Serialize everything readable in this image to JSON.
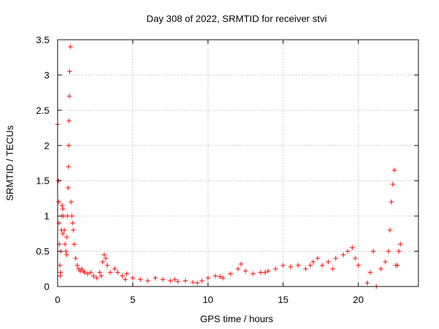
{
  "chart_data": {
    "type": "scatter",
    "title": "Day 308 of 2022, SRMTID for receiver stvi",
    "xlabel": "GPS time / hours",
    "ylabel": "SRMTID / TECUs",
    "xlim": [
      0,
      24
    ],
    "ylim": [
      0,
      3.5
    ],
    "x_ticks": [
      0,
      5,
      10,
      15,
      20
    ],
    "x_tick_labels": [
      "0",
      "5",
      "10",
      "15",
      "20"
    ],
    "y_ticks": [
      0,
      0.5,
      1,
      1.5,
      2,
      2.5,
      3,
      3.5
    ],
    "y_tick_labels": [
      "0",
      "0.5",
      "1",
      "1.5",
      "2",
      "2.5",
      "3",
      "3.5"
    ],
    "grid": true,
    "marker": "+",
    "series": [
      {
        "name": "SRMTID",
        "color": "#ff0000",
        "x": [
          0.0,
          0.05,
          0.08,
          0.1,
          0.12,
          0.15,
          0.18,
          0.2,
          0.22,
          0.25,
          0.28,
          0.3,
          0.35,
          0.4,
          0.45,
          0.5,
          0.55,
          0.6,
          0.65,
          0.7,
          0.72,
          0.74,
          0.76,
          0.78,
          0.8,
          0.85,
          0.9,
          0.95,
          1.0,
          1.05,
          1.1,
          1.2,
          1.3,
          1.4,
          1.5,
          1.6,
          1.8,
          2.0,
          2.2,
          2.4,
          2.6,
          2.8,
          3.0,
          3.1,
          3.2,
          3.3,
          3.5,
          3.8,
          4.0,
          4.3,
          4.6,
          5.0,
          5.5,
          6.0,
          6.5,
          7.0,
          7.5,
          8.0,
          8.5,
          9.0,
          9.3,
          9.6,
          10.0,
          10.5,
          11.0,
          11.5,
          12.0,
          12.2,
          12.5,
          13.0,
          13.5,
          14.0,
          14.5,
          15.0,
          15.5,
          16.0,
          16.5,
          17.0,
          17.3,
          17.6,
          18.0,
          18.5,
          19.0,
          19.3,
          19.6,
          19.8,
          20.0,
          20.6,
          20.8,
          21.0,
          21.5,
          21.8,
          22.0,
          22.1,
          22.2,
          22.3,
          22.4,
          22.5,
          22.7,
          22.8,
          0.35,
          0.6,
          1.7,
          2.9,
          4.5,
          7.8,
          10.8,
          13.8,
          16.8,
          18.3,
          21.2,
          22.6
        ],
        "values": [
          2.3,
          1.5,
          1.2,
          0.9,
          0.6,
          0.3,
          0.15,
          0.2,
          0.5,
          0.8,
          1.0,
          1.15,
          1.1,
          1.0,
          0.8,
          0.6,
          0.5,
          0.7,
          1.0,
          1.4,
          1.7,
          2.0,
          2.35,
          2.7,
          3.05,
          3.4,
          1.2,
          1.0,
          0.9,
          0.8,
          0.6,
          0.4,
          0.3,
          0.25,
          0.22,
          0.25,
          0.2,
          0.18,
          0.2,
          0.15,
          0.12,
          0.2,
          0.35,
          0.45,
          0.4,
          0.3,
          0.2,
          0.25,
          0.2,
          0.15,
          0.18,
          0.12,
          0.1,
          0.08,
          0.12,
          0.1,
          0.08,
          0.07,
          0.08,
          0.06,
          0.05,
          0.08,
          0.12,
          0.15,
          0.12,
          0.18,
          0.25,
          0.32,
          0.22,
          0.18,
          0.2,
          0.22,
          0.25,
          0.3,
          0.28,
          0.3,
          0.25,
          0.35,
          0.4,
          0.3,
          0.35,
          0.4,
          0.45,
          0.5,
          0.55,
          0.4,
          0.3,
          0.05,
          0.2,
          0.5,
          0.25,
          0.35,
          0.5,
          0.8,
          1.2,
          1.45,
          1.65,
          0.3,
          0.5,
          0.6,
          0.75,
          0.45,
          0.22,
          0.15,
          0.1,
          0.1,
          0.14,
          0.2,
          0.3,
          0.25,
          0.0,
          0.3
        ]
      }
    ]
  }
}
